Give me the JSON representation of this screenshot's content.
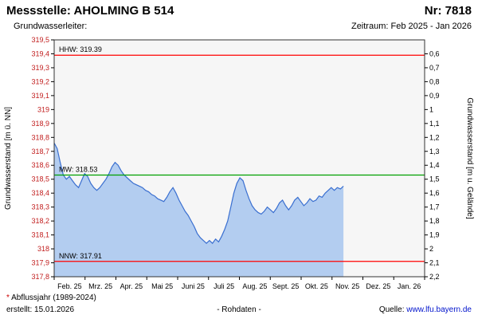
{
  "header": {
    "station_label": "Messstelle: AHOLMING B 514",
    "number_label": "Nr: 7818",
    "aquifer_label": "Grundwasserleiter:",
    "period_label": "Zeitraum: Feb 2025 - Jan 2026"
  },
  "footer": {
    "note_asterisk": "*",
    "note_text": " Abflussjahr (1989-2024)",
    "created": "erstellt: 15.01.2026",
    "center": "- Rohdaten -",
    "source_label": "Quelle: ",
    "source_link": "www.lfu.bayern.de"
  },
  "chart_data": {
    "type": "area",
    "title": "",
    "left_axis": {
      "label": "Grundwasserstand [m ü. NN]",
      "min": 317.8,
      "max": 319.5,
      "step": 0.1,
      "tick_labels": [
        "319,5",
        "319,4",
        "319,3",
        "319,2",
        "319,1",
        "319",
        "318,9",
        "318,8",
        "318,7",
        "318,6",
        "318,5",
        "318,4",
        "318,3",
        "318,2",
        "318,1",
        "318",
        "317,9",
        "317,8"
      ]
    },
    "right_axis": {
      "label": "Grundwasserstand [m u. Gelände]",
      "first_tick_at_left_value": 319.4,
      "step": 0.1,
      "tick_labels": [
        "0,6",
        "0,7",
        "0,8",
        "0,9",
        "1",
        "1,1",
        "1,2",
        "1,3",
        "1,4",
        "1,5",
        "1,6",
        "1,7",
        "1,8",
        "1,9",
        "2",
        "2,1",
        "2,2"
      ]
    },
    "x_axis": {
      "range": "Feb 2025 - Jan 2026",
      "months": [
        "Feb. 25",
        "Mrz. 25",
        "Apr. 25",
        "Mai 25",
        "Juni 25",
        "Juli 25",
        "Aug. 25",
        "Sept. 25",
        "Okt. 25",
        "Nov. 25",
        "Dez. 25",
        "Jan. 26"
      ],
      "total_days": 365
    },
    "reference_lines": [
      {
        "name": "HHW",
        "label": "HHW: 319.39",
        "value": 319.39,
        "color": "#ff0000"
      },
      {
        "name": "MW",
        "label": "MW: 318.53",
        "value": 318.53,
        "color": "#00a000"
      },
      {
        "name": "NNW",
        "label": "NNW: 317.91",
        "value": 317.91,
        "color": "#ff0000"
      }
    ],
    "series": [
      {
        "name": "Rohdaten",
        "points_unit": "days from 2025-02-01, m ü. NN",
        "points": [
          [
            0,
            318.76
          ],
          [
            3,
            318.72
          ],
          [
            6,
            318.62
          ],
          [
            9,
            318.53
          ],
          [
            12,
            318.5
          ],
          [
            15,
            318.52
          ],
          [
            18,
            318.49
          ],
          [
            21,
            318.46
          ],
          [
            24,
            318.44
          ],
          [
            27,
            318.49
          ],
          [
            30,
            318.54
          ],
          [
            33,
            318.52
          ],
          [
            36,
            318.47
          ],
          [
            39,
            318.44
          ],
          [
            42,
            318.42
          ],
          [
            45,
            318.44
          ],
          [
            48,
            318.47
          ],
          [
            51,
            318.5
          ],
          [
            54,
            318.54
          ],
          [
            57,
            318.59
          ],
          [
            60,
            318.62
          ],
          [
            63,
            318.6
          ],
          [
            66,
            318.56
          ],
          [
            69,
            318.53
          ],
          [
            72,
            318.51
          ],
          [
            75,
            318.49
          ],
          [
            78,
            318.47
          ],
          [
            81,
            318.46
          ],
          [
            84,
            318.45
          ],
          [
            87,
            318.44
          ],
          [
            90,
            318.42
          ],
          [
            93,
            318.41
          ],
          [
            96,
            318.39
          ],
          [
            99,
            318.38
          ],
          [
            102,
            318.36
          ],
          [
            105,
            318.35
          ],
          [
            108,
            318.34
          ],
          [
            111,
            318.37
          ],
          [
            114,
            318.41
          ],
          [
            117,
            318.44
          ],
          [
            120,
            318.4
          ],
          [
            123,
            318.35
          ],
          [
            126,
            318.31
          ],
          [
            129,
            318.27
          ],
          [
            132,
            318.24
          ],
          [
            135,
            318.2
          ],
          [
            138,
            318.16
          ],
          [
            141,
            318.11
          ],
          [
            144,
            318.08
          ],
          [
            147,
            318.06
          ],
          [
            150,
            318.04
          ],
          [
            153,
            318.06
          ],
          [
            156,
            318.04
          ],
          [
            159,
            318.07
          ],
          [
            162,
            318.05
          ],
          [
            165,
            318.09
          ],
          [
            168,
            318.14
          ],
          [
            171,
            318.2
          ],
          [
            174,
            318.3
          ],
          [
            177,
            318.4
          ],
          [
            180,
            318.47
          ],
          [
            183,
            318.51
          ],
          [
            186,
            318.49
          ],
          [
            189,
            318.42
          ],
          [
            192,
            318.36
          ],
          [
            195,
            318.31
          ],
          [
            198,
            318.28
          ],
          [
            201,
            318.26
          ],
          [
            204,
            318.25
          ],
          [
            207,
            318.27
          ],
          [
            210,
            318.3
          ],
          [
            213,
            318.28
          ],
          [
            216,
            318.26
          ],
          [
            219,
            318.29
          ],
          [
            222,
            318.33
          ],
          [
            225,
            318.35
          ],
          [
            228,
            318.31
          ],
          [
            231,
            318.28
          ],
          [
            234,
            318.31
          ],
          [
            237,
            318.35
          ],
          [
            240,
            318.37
          ],
          [
            243,
            318.34
          ],
          [
            246,
            318.31
          ],
          [
            249,
            318.33
          ],
          [
            252,
            318.36
          ],
          [
            255,
            318.34
          ],
          [
            258,
            318.35
          ],
          [
            261,
            318.38
          ],
          [
            264,
            318.37
          ],
          [
            267,
            318.4
          ],
          [
            270,
            318.42
          ],
          [
            273,
            318.44
          ],
          [
            276,
            318.42
          ],
          [
            279,
            318.44
          ],
          [
            282,
            318.43
          ],
          [
            285,
            318.45
          ]
        ]
      }
    ],
    "colors": {
      "area_fill": "#b3cdf0",
      "line": "#3a6fd0",
      "plot_bg": "#f6f6f6",
      "plot_border": "#333333",
      "left_axis_text": "#c22020",
      "right_axis_text": "#000000",
      "tick": "#000000"
    }
  }
}
